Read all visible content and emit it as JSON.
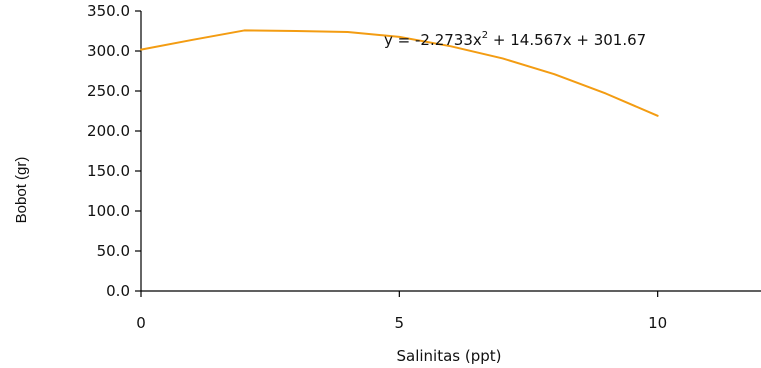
{
  "chart_data": {
    "type": "line",
    "title": "",
    "xlabel": "Salinitas (ppt)",
    "ylabel": "Bobot (gr)",
    "xlim": [
      0,
      12
    ],
    "ylim": [
      0,
      350
    ],
    "x_ticks": [
      0,
      5,
      10
    ],
    "x_tick_labels": [
      "0",
      "5",
      "10"
    ],
    "y_ticks": [
      0,
      50,
      100,
      150,
      200,
      250,
      300,
      350
    ],
    "y_tick_labels": [
      "0.0",
      "50.0",
      "100.0",
      "150.0",
      "200.0",
      "250.0",
      "300.0",
      "350.0"
    ],
    "grid": false,
    "legend": "none",
    "trendline": {
      "type": "polynomial",
      "order": 2,
      "coefficients": {
        "a": -2.2733,
        "b": 14.567,
        "c": 301.67
      },
      "x_range": [
        0,
        10
      ]
    },
    "annotation": {
      "equation_prefix": "y = -2.2733x",
      "equation_power": "2",
      "equation_suffix": " + 14.567x + 301.67"
    },
    "series": [
      {
        "color": "#f39c12",
        "x": [
          0,
          1,
          2,
          3,
          4,
          5,
          6,
          7,
          8,
          9,
          10
        ],
        "values": [
          301.67,
          313.96,
          325.71,
          324.95,
          323.78,
          317.66,
          305.86,
          290.7,
          271.0,
          246.74,
          219.01
        ]
      }
    ]
  }
}
